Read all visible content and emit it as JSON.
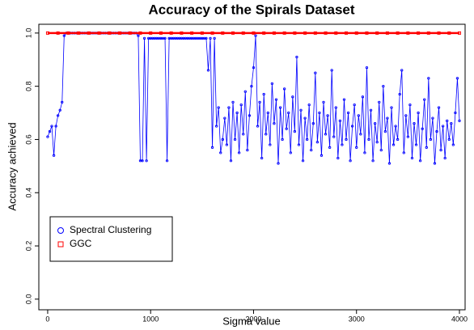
{
  "chart_data": {
    "type": "line",
    "title": "Accuracy of the Spirals Dataset",
    "x_label": "Sigma value",
    "y_label": "Accuracy achieved",
    "xlim": [
      -86,
      4055
    ],
    "ylim": [
      -0.04,
      1.033
    ],
    "xticks": [
      0,
      1000,
      2000,
      3000,
      4000
    ],
    "yticks": [
      {
        "value": 0,
        "label": "0.0"
      },
      0.2,
      0.4,
      0.6,
      0.8,
      {
        "value": 1,
        "label": "1.0"
      }
    ],
    "legend": "bottom-left",
    "series": [
      {
        "name": "Spectral Clustering",
        "color": "#0000ff",
        "marker": "circle",
        "x": [
          0,
          20,
          40,
          60,
          80,
          100,
          120,
          140,
          160,
          180,
          200,
          220,
          240,
          260,
          280,
          300,
          320,
          340,
          360,
          380,
          400,
          420,
          440,
          460,
          480,
          500,
          520,
          540,
          560,
          580,
          600,
          620,
          640,
          660,
          680,
          700,
          720,
          740,
          760,
          780,
          800,
          820,
          840,
          860,
          880,
          900,
          920,
          940,
          960,
          980,
          1000,
          1020,
          1040,
          1060,
          1080,
          1100,
          1120,
          1140,
          1160,
          1180,
          1200,
          1220,
          1240,
          1260,
          1280,
          1300,
          1320,
          1340,
          1360,
          1380,
          1400,
          1420,
          1440,
          1460,
          1480,
          1500,
          1520,
          1540,
          1560,
          1580,
          1600,
          1620,
          1640,
          1660,
          1680,
          1700,
          1720,
          1740,
          1760,
          1780,
          1800,
          1820,
          1840,
          1860,
          1880,
          1900,
          1920,
          1940,
          1960,
          1980,
          2000,
          2020,
          2040,
          2060,
          2080,
          2100,
          2120,
          2140,
          2160,
          2180,
          2200,
          2220,
          2240,
          2260,
          2280,
          2300,
          2320,
          2340,
          2360,
          2380,
          2400,
          2420,
          2440,
          2460,
          2480,
          2500,
          2520,
          2540,
          2560,
          2580,
          2600,
          2620,
          2640,
          2660,
          2680,
          2700,
          2720,
          2740,
          2760,
          2780,
          2800,
          2820,
          2840,
          2860,
          2880,
          2900,
          2920,
          2940,
          2960,
          2980,
          3000,
          3020,
          3040,
          3060,
          3080,
          3100,
          3120,
          3140,
          3160,
          3180,
          3200,
          3220,
          3240,
          3260,
          3280,
          3300,
          3320,
          3340,
          3360,
          3380,
          3400,
          3420,
          3440,
          3460,
          3480,
          3500,
          3520,
          3540,
          3560,
          3580,
          3600,
          3620,
          3640,
          3660,
          3680,
          3700,
          3720,
          3740,
          3760,
          3780,
          3800,
          3820,
          3840,
          3860,
          3880,
          3900,
          3920,
          3940,
          3960,
          3980,
          4000
        ],
        "values": [
          0.61,
          0.63,
          0.65,
          0.54,
          0.65,
          0.69,
          0.71,
          0.74,
          0.99,
          1,
          1,
          1,
          1,
          1,
          1,
          1,
          1,
          1,
          1,
          1,
          1,
          1,
          1,
          1,
          1,
          1,
          1,
          1,
          1,
          1,
          1,
          1,
          1,
          1,
          1,
          1,
          1,
          1,
          1,
          1,
          1,
          1,
          1,
          1,
          0.99,
          0.52,
          0.52,
          0.98,
          0.52,
          0.98,
          0.98,
          0.98,
          0.98,
          0.98,
          0.98,
          0.98,
          0.98,
          0.98,
          0.52,
          0.98,
          0.98,
          0.98,
          0.98,
          0.98,
          0.98,
          0.98,
          0.98,
          0.98,
          0.98,
          0.98,
          0.98,
          0.98,
          0.98,
          0.98,
          0.98,
          0.98,
          0.98,
          0.98,
          0.86,
          0.98,
          0.57,
          0.98,
          0.65,
          0.72,
          0.55,
          0.6,
          0.68,
          0.58,
          0.72,
          0.52,
          0.74,
          0.6,
          0.7,
          0.55,
          0.73,
          0.62,
          0.78,
          0.56,
          0.69,
          0.8,
          0.87,
          0.99,
          0.65,
          0.74,
          0.53,
          0.77,
          0.62,
          0.7,
          0.58,
          0.81,
          0.66,
          0.75,
          0.51,
          0.72,
          0.6,
          0.79,
          0.64,
          0.7,
          0.55,
          0.76,
          0.63,
          0.91,
          0.58,
          0.71,
          0.52,
          0.68,
          0.6,
          0.73,
          0.56,
          0.66,
          0.85,
          0.59,
          0.7,
          0.54,
          0.74,
          0.62,
          0.69,
          0.57,
          0.86,
          0.61,
          0.72,
          0.53,
          0.67,
          0.58,
          0.75,
          0.6,
          0.7,
          0.52,
          0.65,
          0.73,
          0.57,
          0.69,
          0.62,
          0.76,
          0.55,
          0.87,
          0.6,
          0.71,
          0.52,
          0.66,
          0.59,
          0.74,
          0.56,
          0.8,
          0.63,
          0.68,
          0.51,
          0.72,
          0.58,
          0.65,
          0.6,
          0.77,
          0.86,
          0.55,
          0.69,
          0.61,
          0.73,
          0.53,
          0.66,
          0.58,
          0.7,
          0.52,
          0.64,
          0.75,
          0.57,
          0.83,
          0.6,
          0.68,
          0.51,
          0.63,
          0.72,
          0.56,
          0.65,
          0.53,
          0.67,
          0.6,
          0.66,
          0.58,
          0.7,
          0.83,
          0.67
        ]
      },
      {
        "name": "GGC",
        "color": "#ff0000",
        "marker": "square",
        "x": [
          0,
          100,
          200,
          300,
          400,
          500,
          600,
          700,
          800,
          900,
          1000,
          1100,
          1200,
          1300,
          1400,
          1500,
          1600,
          1700,
          1800,
          1900,
          2000,
          2100,
          2200,
          2300,
          2400,
          2500,
          2600,
          2700,
          2800,
          2900,
          3000,
          3100,
          3200,
          3300,
          3400,
          3500,
          3600,
          3700,
          3800,
          3900,
          4000
        ],
        "values": [
          1,
          1,
          1,
          1,
          1,
          1,
          1,
          1,
          1,
          1,
          1,
          1,
          1,
          1,
          1,
          1,
          1,
          1,
          1,
          1,
          1,
          1,
          1,
          1,
          1,
          1,
          1,
          1,
          1,
          1,
          1,
          1,
          1,
          1,
          1,
          1,
          1,
          1,
          1,
          1,
          1
        ]
      }
    ]
  }
}
